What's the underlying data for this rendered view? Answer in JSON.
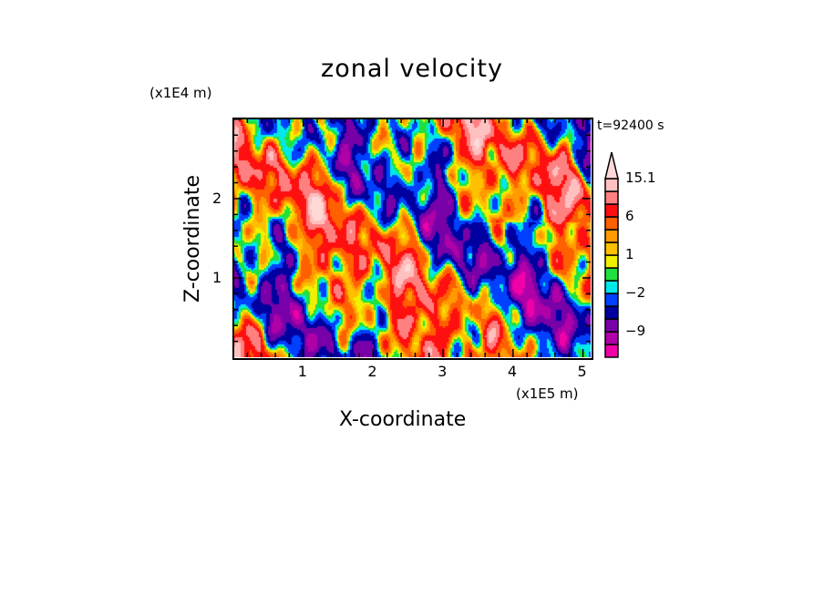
{
  "chart_data": {
    "type": "heatmap",
    "title": "zonal velocity",
    "xlabel": "X-coordinate",
    "ylabel": "Z-coordinate",
    "x_unit": "(x1E5 m)",
    "y_unit": "(x1E4 m)",
    "annotation": "t=92400 s",
    "xlim": [
      0,
      5.11
    ],
    "ylim": [
      0,
      3.01
    ],
    "x_ticks": [
      "1",
      "2",
      "3",
      "4",
      "5"
    ],
    "x_tick_values": [
      1,
      2,
      3,
      4,
      5
    ],
    "y_ticks": [
      "1",
      "2"
    ],
    "y_tick_values": [
      1,
      2
    ],
    "minor_tick_step": 0.2,
    "colorbar": {
      "labels": [
        "15.1",
        "6",
        "1",
        "−2",
        "−9"
      ],
      "label_values": [
        15.1,
        6,
        1,
        -2,
        -9
      ],
      "levels": [
        -15,
        -12,
        -9,
        -6,
        -3,
        -2,
        -1,
        0,
        1,
        2,
        3,
        6,
        9,
        12,
        15.1
      ],
      "colors": [
        "#f000a8",
        "#b000a8",
        "#7800a8",
        "#0000a0",
        "#0040ff",
        "#00e8e8",
        "#20e040",
        "#f0f000",
        "#ffc000",
        "#ff9a00",
        "#ff6000",
        "#ff1010",
        "#ff8080",
        "#ffc0c0",
        "#ffd8d8"
      ],
      "extend": "max"
    }
  }
}
